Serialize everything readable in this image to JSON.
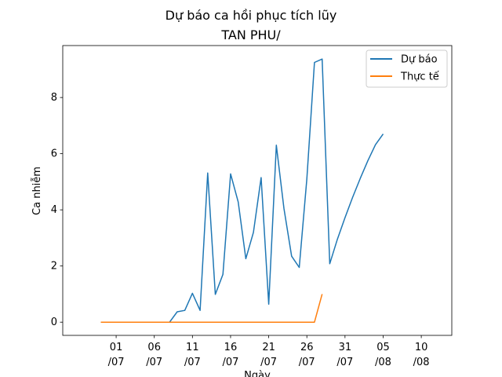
{
  "chart_data": {
    "type": "line",
    "title": "Dự báo ca hồi phục tích lũy",
    "subtitle": "TAN PHU/",
    "xlabel": "Ngày",
    "ylabel": "Ca nhiễm",
    "xlim": [
      "2021-06-24",
      "2021-08-14"
    ],
    "ylim": [
      -0.47,
      9.85
    ],
    "grid": false,
    "legend_position": "upper right",
    "x_ticks": [
      {
        "date": "2021-07-01",
        "label": [
          "01",
          "/07"
        ]
      },
      {
        "date": "2021-07-06",
        "label": [
          "06",
          "/07"
        ]
      },
      {
        "date": "2021-07-11",
        "label": [
          "11",
          "/07"
        ]
      },
      {
        "date": "2021-07-16",
        "label": [
          "16",
          "/07"
        ]
      },
      {
        "date": "2021-07-21",
        "label": [
          "21",
          "/07"
        ]
      },
      {
        "date": "2021-07-26",
        "label": [
          "26",
          "/07"
        ]
      },
      {
        "date": "2021-07-31",
        "label": [
          "31",
          "/07"
        ]
      },
      {
        "date": "2021-08-05",
        "label": [
          "05",
          "/08"
        ]
      },
      {
        "date": "2021-08-10",
        "label": [
          "10",
          "/08"
        ]
      }
    ],
    "y_ticks": [
      0,
      2,
      4,
      6,
      8
    ],
    "series": [
      {
        "name": "Dự báo",
        "color": "#1f77b4",
        "points": [
          [
            "2021-06-29",
            0
          ],
          [
            "2021-06-30",
            0
          ],
          [
            "2021-07-01",
            0
          ],
          [
            "2021-07-02",
            0
          ],
          [
            "2021-07-03",
            0
          ],
          [
            "2021-07-04",
            0
          ],
          [
            "2021-07-05",
            0
          ],
          [
            "2021-07-06",
            0
          ],
          [
            "2021-07-07",
            0
          ],
          [
            "2021-07-08",
            0
          ],
          [
            "2021-07-09",
            0.37
          ],
          [
            "2021-07-10",
            0.42
          ],
          [
            "2021-07-11",
            1.03
          ],
          [
            "2021-07-12",
            0.42
          ],
          [
            "2021-07-13",
            5.31
          ],
          [
            "2021-07-14",
            0.99
          ],
          [
            "2021-07-15",
            1.7
          ],
          [
            "2021-07-16",
            5.28
          ],
          [
            "2021-07-17",
            4.28
          ],
          [
            "2021-07-18",
            2.26
          ],
          [
            "2021-07-19",
            3.2
          ],
          [
            "2021-07-20",
            5.15
          ],
          [
            "2021-07-21",
            0.64
          ],
          [
            "2021-07-22",
            6.3
          ],
          [
            "2021-07-23",
            4.05
          ],
          [
            "2021-07-24",
            2.35
          ],
          [
            "2021-07-25",
            1.95
          ],
          [
            "2021-07-26",
            5.1
          ],
          [
            "2021-07-27",
            9.25
          ],
          [
            "2021-07-28",
            9.37
          ],
          [
            "2021-07-29",
            2.08
          ],
          [
            "2021-07-30",
            2.95
          ],
          [
            "2021-07-31",
            3.72
          ],
          [
            "2021-08-01",
            4.45
          ],
          [
            "2021-08-02",
            5.12
          ],
          [
            "2021-08-03",
            5.75
          ],
          [
            "2021-08-04",
            6.32
          ],
          [
            "2021-08-05",
            6.7
          ]
        ]
      },
      {
        "name": "Thực tế",
        "color": "#ff7f0e",
        "points": [
          [
            "2021-06-29",
            0
          ],
          [
            "2021-06-30",
            0
          ],
          [
            "2021-07-01",
            0
          ],
          [
            "2021-07-02",
            0
          ],
          [
            "2021-07-03",
            0
          ],
          [
            "2021-07-04",
            0
          ],
          [
            "2021-07-05",
            0
          ],
          [
            "2021-07-06",
            0
          ],
          [
            "2021-07-07",
            0
          ],
          [
            "2021-07-08",
            0
          ],
          [
            "2021-07-09",
            0
          ],
          [
            "2021-07-10",
            0
          ],
          [
            "2021-07-11",
            0
          ],
          [
            "2021-07-12",
            0
          ],
          [
            "2021-07-13",
            0
          ],
          [
            "2021-07-14",
            0
          ],
          [
            "2021-07-15",
            0
          ],
          [
            "2021-07-16",
            0
          ],
          [
            "2021-07-17",
            0
          ],
          [
            "2021-07-18",
            0
          ],
          [
            "2021-07-19",
            0
          ],
          [
            "2021-07-20",
            0
          ],
          [
            "2021-07-21",
            0
          ],
          [
            "2021-07-22",
            0
          ],
          [
            "2021-07-23",
            0
          ],
          [
            "2021-07-24",
            0
          ],
          [
            "2021-07-25",
            0
          ],
          [
            "2021-07-26",
            0
          ],
          [
            "2021-07-27",
            0
          ],
          [
            "2021-07-28",
            1
          ]
        ]
      }
    ]
  }
}
